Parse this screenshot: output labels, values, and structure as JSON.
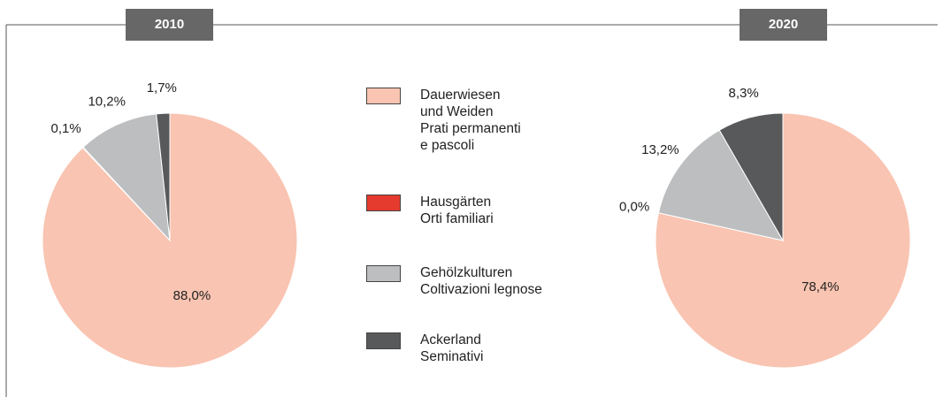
{
  "chart_data": [
    {
      "type": "pie",
      "title": "2010",
      "categories": [
        "Dauerwiesen\nund Weiden\nPrati permanenti\ne pascoli",
        "Hausgärten\nOrti familiari",
        "Gehölzkulturen\nColtivazioni legnose",
        "Ackerland\nSeminativi"
      ],
      "values": [
        88.0,
        0.1,
        10.2,
        1.7
      ],
      "value_labels": [
        "88,0%",
        "0,1%",
        "10,2%",
        "1,7%"
      ],
      "colors": [
        "#f9c4b1",
        "#e53a2e",
        "#bcbec0",
        "#58595b"
      ]
    },
    {
      "type": "pie",
      "title": "2020",
      "categories": [
        "Dauerwiesen\nund Weiden\nPrati permanenti\ne pascoli",
        "Hausgärten\nOrti familiari",
        "Gehölzkulturen\nColtivazioni legnose",
        "Ackerland\nSeminativi"
      ],
      "values": [
        78.4,
        0.0,
        13.2,
        8.3
      ],
      "value_labels": [
        "78,4%",
        "0,0%",
        "13,2%",
        "8,3%"
      ],
      "colors": [
        "#f9c4b1",
        "#e53a2e",
        "#bcbec0",
        "#58595b"
      ]
    }
  ]
}
